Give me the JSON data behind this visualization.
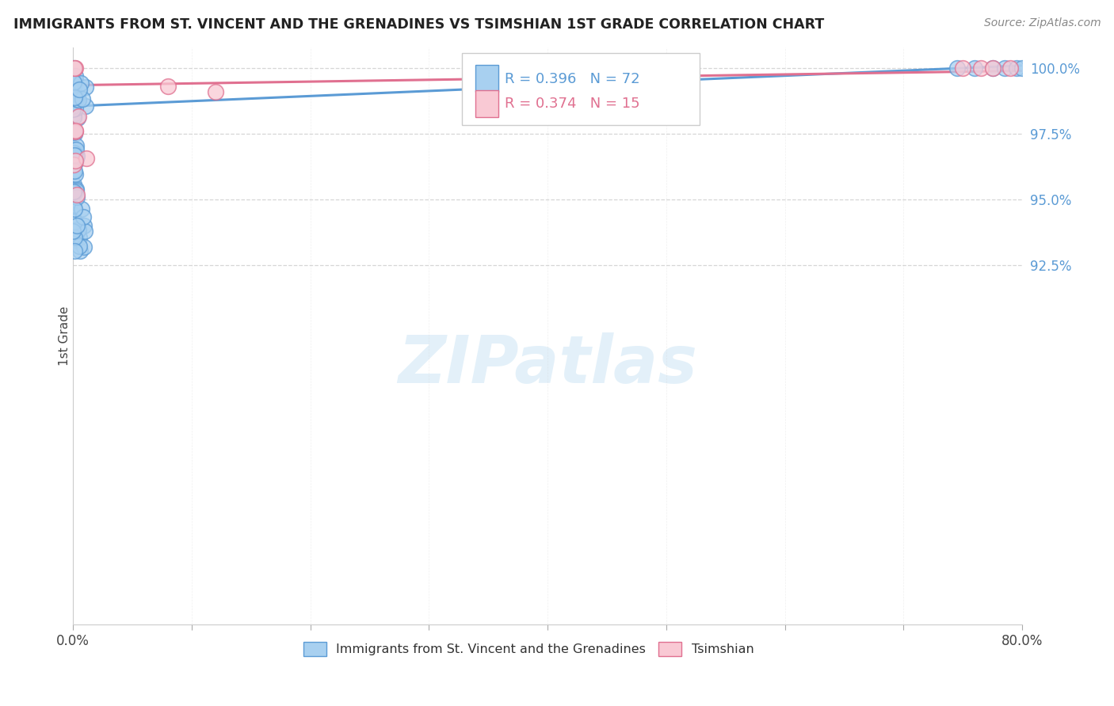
{
  "title": "IMMIGRANTS FROM ST. VINCENT AND THE GRENADINES VS TSIMSHIAN 1ST GRADE CORRELATION CHART",
  "source": "Source: ZipAtlas.com",
  "ylabel": "1st Grade",
  "xlim": [
    0.0,
    0.8
  ],
  "ylim": [
    0.788,
    1.008
  ],
  "xtick_positions": [
    0.0,
    0.1,
    0.2,
    0.3,
    0.4,
    0.5,
    0.6,
    0.7,
    0.8
  ],
  "xticklabels": [
    "0.0%",
    "",
    "",
    "",
    "",
    "",
    "",
    "",
    "80.0%"
  ],
  "ytick_positions": [
    0.925,
    0.95,
    0.975,
    1.0
  ],
  "yticklabels": [
    "92.5%",
    "95.0%",
    "97.5%",
    "100.0%"
  ],
  "blue_color": "#a8d0f0",
  "blue_edge_color": "#5b9bd5",
  "pink_color": "#f9c9d4",
  "pink_edge_color": "#e07090",
  "trend_blue_color": "#5b9bd5",
  "trend_pink_color": "#e07090",
  "R_blue": 0.396,
  "N_blue": 72,
  "R_pink": 0.374,
  "N_pink": 15,
  "legend_label_blue": "Immigrants from St. Vincent and the Grenadines",
  "legend_label_pink": "Tsimshian",
  "watermark": "ZIPatlas",
  "grid_color": "#cccccc",
  "ytick_color": "#5b9bd5",
  "blue_trend_x0": 0.0,
  "blue_trend_y0": 0.9855,
  "blue_trend_x1": 0.8,
  "blue_trend_y1": 1.001,
  "pink_trend_x0": 0.0,
  "pink_trend_y0": 0.9935,
  "pink_trend_x1": 0.8,
  "pink_trend_y1": 0.999
}
